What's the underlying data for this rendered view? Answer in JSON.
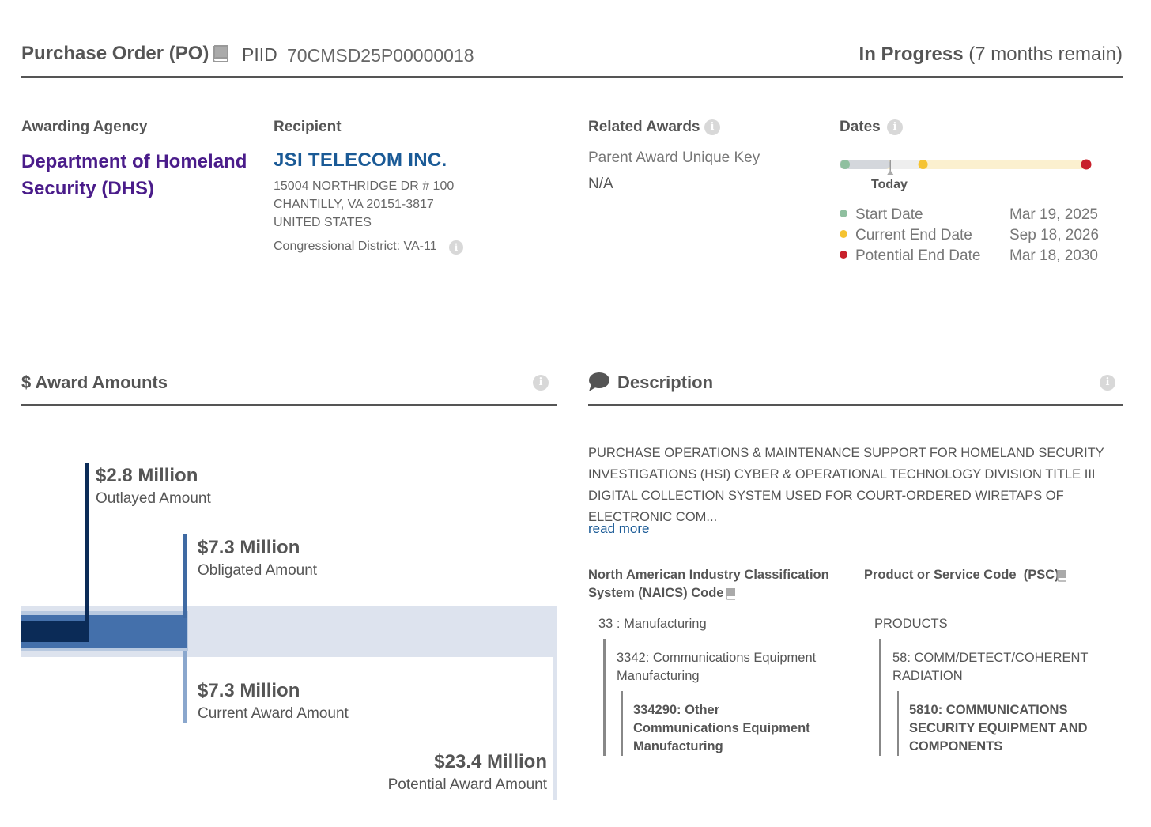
{
  "header": {
    "award_type": "Purchase Order (PO)",
    "piid_label": "PIID",
    "piid": "70CMSD25P00000018",
    "status": "In Progress",
    "status_detail": "(7 months remain)"
  },
  "agency": {
    "label": "Awarding Agency",
    "name": "Department of Homeland Security (DHS)"
  },
  "recipient": {
    "label": "Recipient",
    "name": "JSI TELECOM INC.",
    "address_line1": "15004 NORTHRIDGE DR # 100",
    "address_line2": "CHANTILLY, VA 20151-3817",
    "address_line3": "UNITED STATES",
    "congressional_district": "Congressional District: VA-11"
  },
  "related_awards": {
    "label": "Related Awards",
    "parent_key_label": "Parent Award Unique Key",
    "parent_key_value": "N/A"
  },
  "dates": {
    "label": "Dates",
    "today_label": "Today",
    "today_progress": 0.18,
    "current_end_progress": 0.31,
    "entries": [
      {
        "label": "Start Date",
        "value": "Mar 19, 2025",
        "color": "#8fbf9f"
      },
      {
        "label": "Current End Date",
        "value": "Sep 18, 2026",
        "color": "#f5c331"
      },
      {
        "label": "Potential End Date",
        "value": "Mar 18, 2030",
        "color": "#c8202b"
      }
    ]
  },
  "award_amounts": {
    "title": "$ Award Amounts",
    "outlayed": {
      "value": "$2.8 Million",
      "label": "Outlayed Amount",
      "amount_millions": 2.8,
      "color": "#0b2b57"
    },
    "obligated": {
      "value": "$7.3 Million",
      "label": "Obligated Amount",
      "amount_millions": 7.3,
      "color": "#3f6aa3"
    },
    "current": {
      "value": "$7.3 Million",
      "label": "Current Award Amount",
      "amount_millions": 7.3,
      "color": "#8aa7cd"
    },
    "potential": {
      "value": "$23.4 Million",
      "label": "Potential Award Amount",
      "amount_millions": 23.4,
      "color": "#dde3ee"
    }
  },
  "description": {
    "title": "Description",
    "text": "PURCHASE OPERATIONS & MAINTENANCE SUPPORT FOR HOMELAND SECURITY INVESTIGATIONS (HSI) CYBER & OPERATIONAL TECHNOLOGY DIVISION TITLE III DIGITAL COLLECTION SYSTEM USED FOR COURT-ORDERED WIRETAPS OF ELECTRONIC COM...",
    "read_more": "read more"
  },
  "naics": {
    "heading_line1": "North American Industry Classification",
    "heading_line2": "System (NAICS) Code",
    "level1": "33 : Manufacturing",
    "level2_line1": "3342: Communications Equipment",
    "level2_line2": "Manufacturing",
    "level3_line1": "334290: Other",
    "level3_line2": "Communications Equipment",
    "level3_line3": "Manufacturing"
  },
  "psc": {
    "heading": "Product or Service Code  (PSC)",
    "level1": "PRODUCTS",
    "level2_line1": "58: COMM/DETECT/COHERENT",
    "level2_line2": "RADIATION",
    "level3_line1": "5810: COMMUNICATIONS",
    "level3_line2": "SECURITY EQUIPMENT AND",
    "level3_line3": "COMPONENTS"
  }
}
